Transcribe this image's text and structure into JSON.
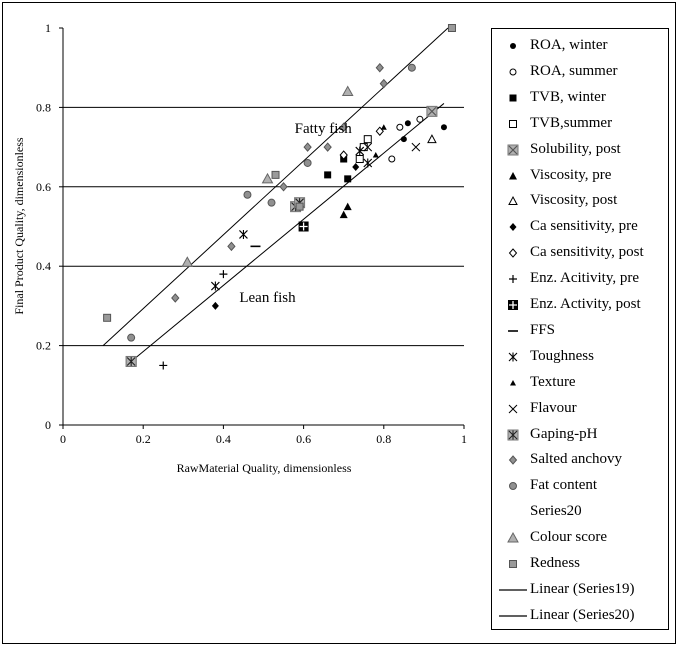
{
  "chart_data": {
    "type": "scatter",
    "xlabel": "RawMaterial Quality, dimensionless",
    "ylabel": "Final Product Quality, dimensionless",
    "xlim": [
      0,
      1
    ],
    "ylim": [
      0,
      1
    ],
    "x_ticks": [
      "0",
      "0.2",
      "0.4",
      "0.6",
      "0.8",
      "1"
    ],
    "y_ticks": [
      "0",
      "0.2",
      "0.4",
      "0.6",
      "0.8",
      "1"
    ],
    "annotations": [
      {
        "text": "Fatty fish",
        "x": 0.72,
        "y": 0.735
      },
      {
        "text": "Lean fish",
        "x": 0.58,
        "y": 0.31
      }
    ],
    "series": [
      {
        "name": "ROA, winter",
        "marker": "filled-circle",
        "points": [
          [
            0.85,
            0.72
          ],
          [
            0.86,
            0.76
          ],
          [
            0.95,
            0.75
          ]
        ]
      },
      {
        "name": "ROA, summer",
        "marker": "open-circle",
        "points": [
          [
            0.82,
            0.67
          ],
          [
            0.84,
            0.75
          ],
          [
            0.89,
            0.77
          ]
        ]
      },
      {
        "name": "TVB, winter",
        "marker": "filled-square",
        "points": [
          [
            0.66,
            0.63
          ],
          [
            0.7,
            0.67
          ],
          [
            0.71,
            0.62
          ]
        ]
      },
      {
        "name": "TVB,summer",
        "marker": "open-square",
        "points": [
          [
            0.74,
            0.67
          ],
          [
            0.75,
            0.7
          ],
          [
            0.76,
            0.72
          ]
        ]
      },
      {
        "name": "Solubility, post",
        "marker": "gray-x-square",
        "points": [
          [
            0.17,
            0.16
          ],
          [
            0.92,
            0.79
          ]
        ]
      },
      {
        "name": "Viscosity, pre",
        "marker": "filled-triangle",
        "points": [
          [
            0.7,
            0.53
          ],
          [
            0.71,
            0.55
          ]
        ]
      },
      {
        "name": "Viscosity, post",
        "marker": "open-triangle",
        "points": [
          [
            0.92,
            0.72
          ]
        ]
      },
      {
        "name": "Ca sensitivity, pre",
        "marker": "filled-diamond",
        "points": [
          [
            0.38,
            0.3
          ],
          [
            0.73,
            0.65
          ]
        ]
      },
      {
        "name": "Ca sensitivity, post",
        "marker": "open-diamond",
        "points": [
          [
            0.7,
            0.68
          ],
          [
            0.79,
            0.74
          ]
        ]
      },
      {
        "name": "Enz. Acitivity, pre",
        "marker": "plus",
        "points": [
          [
            0.25,
            0.15
          ],
          [
            0.4,
            0.38
          ]
        ]
      },
      {
        "name": "Enz. Activity, post",
        "marker": "boxed-plus",
        "points": [
          [
            0.6,
            0.5
          ]
        ]
      },
      {
        "name": "FFS",
        "marker": "dash",
        "points": [
          [
            0.48,
            0.45
          ]
        ]
      },
      {
        "name": "Toughness",
        "marker": "asterisk",
        "points": [
          [
            0.38,
            0.35
          ],
          [
            0.45,
            0.48
          ],
          [
            0.74,
            0.69
          ],
          [
            0.76,
            0.66
          ]
        ]
      },
      {
        "name": "Texture",
        "marker": "small-triangle",
        "points": [
          [
            0.78,
            0.68
          ],
          [
            0.8,
            0.75
          ]
        ]
      },
      {
        "name": "Flavour",
        "marker": "x",
        "points": [
          [
            0.76,
            0.7
          ],
          [
            0.88,
            0.7
          ]
        ]
      },
      {
        "name": "Gaping-pH",
        "marker": "gray-asterisk-square",
        "points": [
          [
            0.17,
            0.16
          ],
          [
            0.58,
            0.55
          ],
          [
            0.59,
            0.56
          ]
        ]
      },
      {
        "name": "Salted anchovy",
        "marker": "gray-diamond",
        "points": [
          [
            0.28,
            0.32
          ],
          [
            0.42,
            0.45
          ],
          [
            0.55,
            0.6
          ],
          [
            0.61,
            0.7
          ],
          [
            0.66,
            0.7
          ],
          [
            0.7,
            0.75
          ],
          [
            0.79,
            0.9
          ],
          [
            0.8,
            0.86
          ]
        ]
      },
      {
        "name": "Fat content",
        "marker": "gray-circle",
        "points": [
          [
            0.17,
            0.22
          ],
          [
            0.46,
            0.58
          ],
          [
            0.52,
            0.56
          ],
          [
            0.61,
            0.66
          ],
          [
            0.87,
            0.9
          ]
        ]
      },
      {
        "name": "Series20",
        "marker": "none",
        "points": []
      },
      {
        "name": "Colour score",
        "marker": "gray-triangle",
        "points": [
          [
            0.31,
            0.41
          ],
          [
            0.51,
            0.62
          ],
          [
            0.71,
            0.84
          ]
        ]
      },
      {
        "name": "Redness",
        "marker": "gray-square",
        "points": [
          [
            0.11,
            0.27
          ],
          [
            0.53,
            0.63
          ],
          [
            0.59,
            0.55
          ],
          [
            0.97,
            1.0
          ]
        ]
      }
    ],
    "lines": [
      {
        "name": "Linear (Series19)",
        "x": [
          0.1,
          0.96
        ],
        "y": [
          0.2,
          1.0
        ]
      },
      {
        "name": "Linear (Series20)",
        "x": [
          0.17,
          0.95
        ],
        "y": [
          0.16,
          0.81
        ]
      }
    ],
    "gridlines_y": [
      0.2,
      0.4,
      0.6,
      0.8
    ],
    "legend_position": "right"
  }
}
